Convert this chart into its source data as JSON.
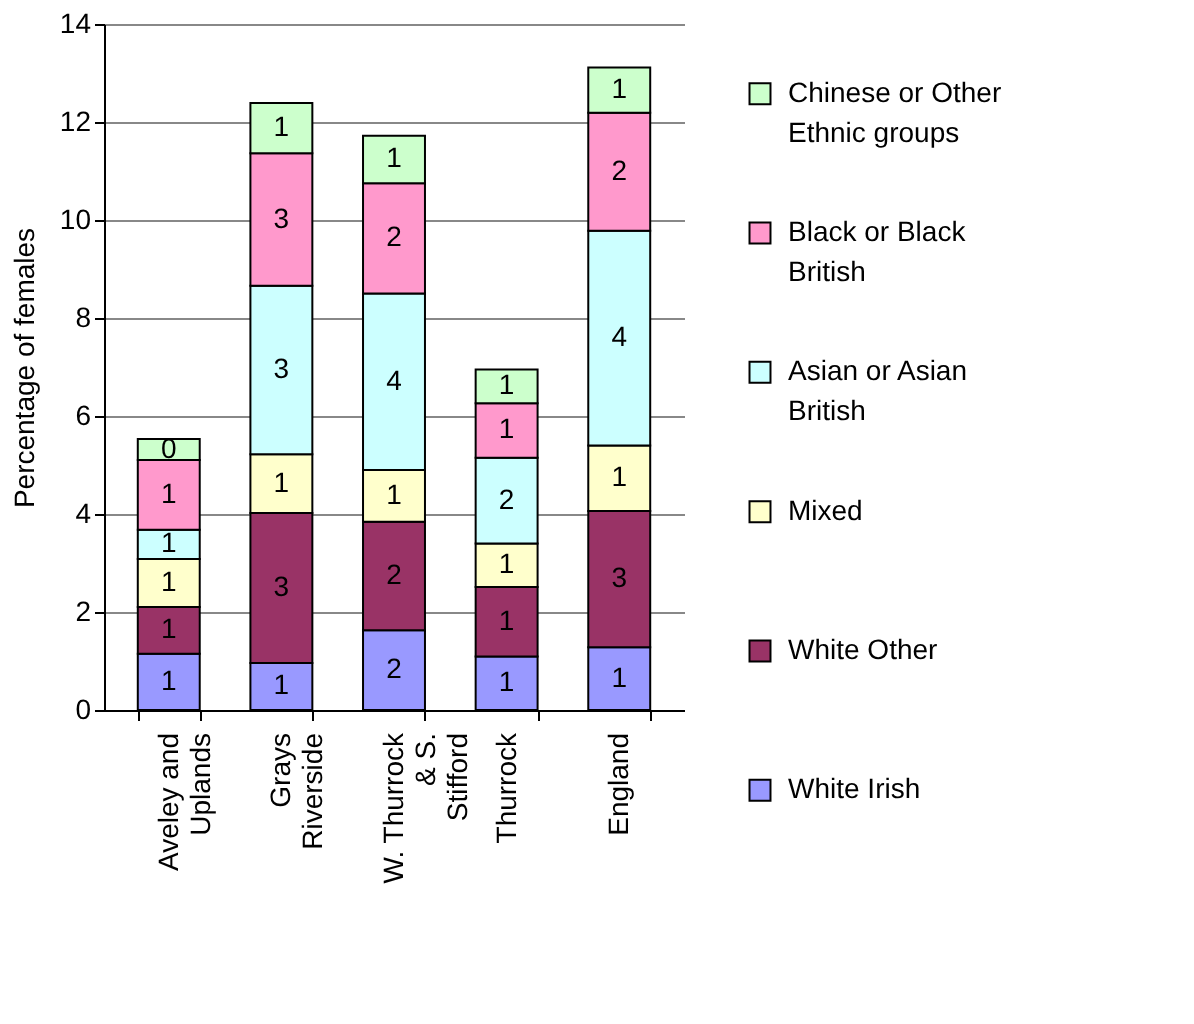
{
  "chart_data": {
    "type": "bar",
    "stacked": true,
    "ylabel": "Percentage of females",
    "categories": [
      "Aveley and Uplands",
      "Grays Riverside",
      "W. Thurrock & S. Stifford",
      "Thurrock",
      "England"
    ],
    "ylim": [
      0,
      14
    ],
    "yticks": [
      0,
      2,
      4,
      6,
      8,
      10,
      12,
      14
    ],
    "grid": "y",
    "legend": "right",
    "series": [
      {
        "name": "White Irish",
        "color": "#9999ff",
        "values": [
          1.15,
          0.96,
          1.63,
          1.09,
          1.28
        ],
        "value_labels": [
          "1",
          "1",
          "2",
          "1",
          "1"
        ]
      },
      {
        "name": "White Other",
        "color": "#993366",
        "values": [
          0.95,
          3.06,
          2.21,
          1.42,
          2.78
        ],
        "value_labels": [
          "1",
          "3",
          "2",
          "1",
          "3"
        ]
      },
      {
        "name": "Mixed",
        "color": "#ffffcc",
        "values": [
          0.98,
          1.2,
          1.06,
          0.89,
          1.34
        ],
        "value_labels": [
          "1",
          "1",
          "1",
          "1",
          "1"
        ]
      },
      {
        "name": "Asian or Asian British",
        "color": "#ccffff",
        "values": [
          0.6,
          3.44,
          3.6,
          1.75,
          4.38
        ],
        "value_labels": [
          "1",
          "3",
          "4",
          "2",
          "4"
        ]
      },
      {
        "name": "Black or Black British",
        "color": "#ff99cc",
        "values": [
          1.42,
          2.7,
          2.25,
          1.11,
          2.41
        ],
        "value_labels": [
          "1",
          "3",
          "2",
          "1",
          "2"
        ]
      },
      {
        "name": "Chinese or Other Ethnic groups",
        "color": "#ccffcc",
        "values": [
          0.43,
          1.03,
          0.97,
          0.69,
          0.92
        ],
        "value_labels": [
          "0",
          "1",
          "1",
          "1",
          "1"
        ]
      }
    ]
  }
}
